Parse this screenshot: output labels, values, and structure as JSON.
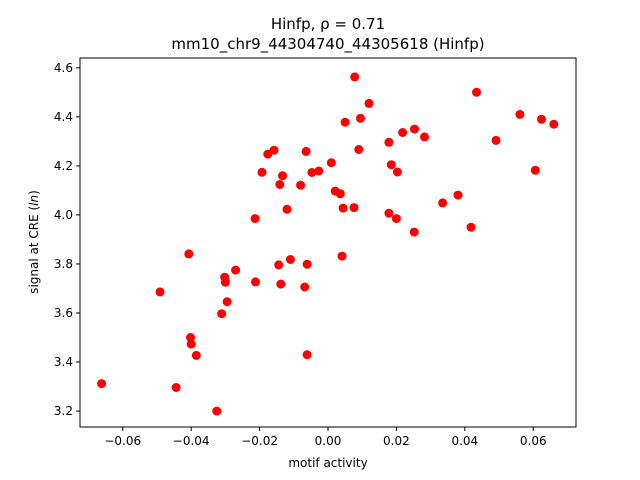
{
  "chart_data": {
    "type": "scatter",
    "title": "Hinfp, ρ = 0.71",
    "subtitle": "mm10_chr9_44304740_44305618 (Hinfp)",
    "xlabel": "motif activity",
    "ylabel": "signal at CRE (ln)",
    "xlim": [
      -0.0725,
      0.0725
    ],
    "ylim": [
      3.135,
      4.64
    ],
    "xticks": [
      -0.06,
      -0.04,
      -0.02,
      0.0,
      0.02,
      0.04,
      0.06
    ],
    "xtick_labels": [
      "−0.06",
      "−0.04",
      "−0.02",
      "0.00",
      "0.02",
      "0.04",
      "0.06"
    ],
    "yticks": [
      3.2,
      3.4,
      3.6,
      3.8,
      4.0,
      4.2,
      4.4,
      4.6
    ],
    "ytick_labels": [
      "3.2",
      "3.4",
      "3.6",
      "3.8",
      "4.0",
      "4.2",
      "4.4",
      "4.6"
    ],
    "grid": false,
    "color": "#ff0000",
    "points": [
      {
        "x": -0.0662,
        "y": 3.312
      },
      {
        "x": -0.0491,
        "y": 3.686
      },
      {
        "x": -0.0444,
        "y": 3.296
      },
      {
        "x": -0.0407,
        "y": 3.841
      },
      {
        "x": -0.0402,
        "y": 3.5
      },
      {
        "x": -0.04,
        "y": 3.473
      },
      {
        "x": -0.0385,
        "y": 3.427
      },
      {
        "x": -0.0325,
        "y": 3.2
      },
      {
        "x": -0.0311,
        "y": 3.597
      },
      {
        "x": -0.0302,
        "y": 3.746
      },
      {
        "x": -0.03,
        "y": 3.725
      },
      {
        "x": -0.0295,
        "y": 3.646
      },
      {
        "x": -0.027,
        "y": 3.775
      },
      {
        "x": -0.0213,
        "y": 3.985
      },
      {
        "x": -0.0212,
        "y": 3.727
      },
      {
        "x": -0.0193,
        "y": 4.174
      },
      {
        "x": -0.0176,
        "y": 4.248
      },
      {
        "x": -0.0158,
        "y": 4.264
      },
      {
        "x": -0.0144,
        "y": 3.796
      },
      {
        "x": -0.0141,
        "y": 4.124
      },
      {
        "x": -0.0138,
        "y": 3.718
      },
      {
        "x": -0.0133,
        "y": 4.16
      },
      {
        "x": -0.012,
        "y": 4.023
      },
      {
        "x": -0.011,
        "y": 3.818
      },
      {
        "x": -0.008,
        "y": 4.121
      },
      {
        "x": -0.0068,
        "y": 3.706
      },
      {
        "x": -0.0064,
        "y": 4.259
      },
      {
        "x": -0.0061,
        "y": 3.799
      },
      {
        "x": -0.0061,
        "y": 3.43
      },
      {
        "x": -0.0047,
        "y": 4.173
      },
      {
        "x": -0.0027,
        "y": 4.179
      },
      {
        "x": 0.001,
        "y": 4.213
      },
      {
        "x": 0.0021,
        "y": 4.097
      },
      {
        "x": 0.0036,
        "y": 4.086
      },
      {
        "x": 0.0041,
        "y": 3.832
      },
      {
        "x": 0.0044,
        "y": 4.028
      },
      {
        "x": 0.005,
        "y": 4.378
      },
      {
        "x": 0.0076,
        "y": 4.03
      },
      {
        "x": 0.0078,
        "y": 4.563
      },
      {
        "x": 0.009,
        "y": 4.267
      },
      {
        "x": 0.0095,
        "y": 4.394
      },
      {
        "x": 0.012,
        "y": 4.455
      },
      {
        "x": 0.0178,
        "y": 4.007
      },
      {
        "x": 0.0178,
        "y": 4.296
      },
      {
        "x": 0.0185,
        "y": 4.205
      },
      {
        "x": 0.02,
        "y": 3.985
      },
      {
        "x": 0.0203,
        "y": 4.175
      },
      {
        "x": 0.0218,
        "y": 4.336
      },
      {
        "x": 0.0252,
        "y": 3.93
      },
      {
        "x": 0.0253,
        "y": 4.35
      },
      {
        "x": 0.0282,
        "y": 4.318
      },
      {
        "x": 0.0335,
        "y": 4.049
      },
      {
        "x": 0.038,
        "y": 4.081
      },
      {
        "x": 0.0418,
        "y": 3.95
      },
      {
        "x": 0.0434,
        "y": 4.5
      },
      {
        "x": 0.0491,
        "y": 4.304
      },
      {
        "x": 0.0561,
        "y": 4.41
      },
      {
        "x": 0.0606,
        "y": 4.182
      },
      {
        "x": 0.0624,
        "y": 4.39
      },
      {
        "x": 0.066,
        "y": 4.37
      }
    ]
  }
}
